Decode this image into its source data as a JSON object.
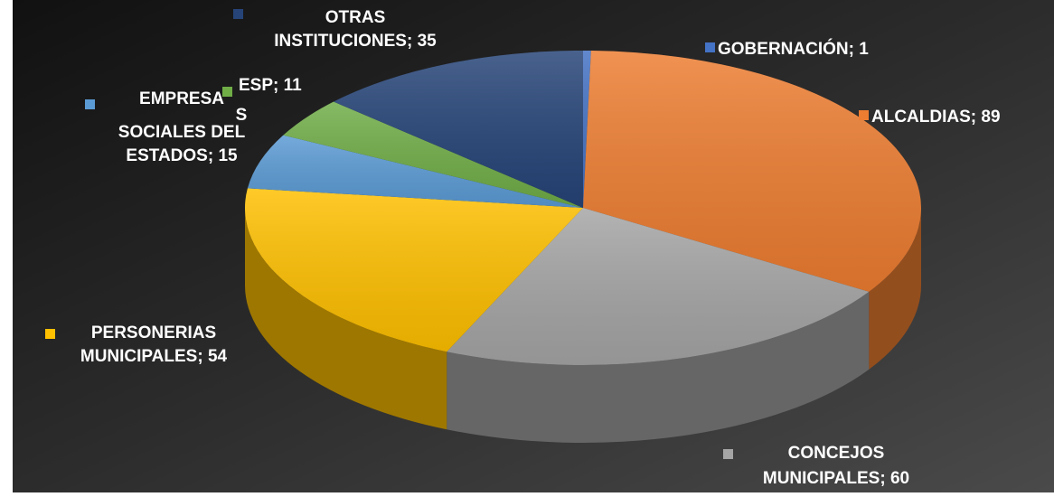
{
  "chart_data": {
    "type": "pie",
    "style": "3d",
    "background": "#000000",
    "slices": [
      {
        "label": "GOBERNACIÓN",
        "value": 1,
        "color": "#4472C4",
        "display": [
          "GOBERNACIÓN; 1"
        ]
      },
      {
        "label": "ALCALDIAS",
        "value": 89,
        "color": "#ED7D31",
        "display": [
          "ALCALDIAS; 89"
        ]
      },
      {
        "label": "CONCEJOS MUNICIPALES",
        "value": 60,
        "color": "#A5A5A5",
        "display": [
          "CONCEJOS",
          "MUNICIPALES; 60"
        ]
      },
      {
        "label": "PERSONERIAS MUNICIPALES",
        "value": 54,
        "color": "#FFC000",
        "display": [
          "PERSONERIAS",
          "MUNICIPALES; 54"
        ]
      },
      {
        "label": "EMPRESAS SOCIALES DEL ESTADOS",
        "value": 15,
        "color": "#5B9BD5",
        "display": [
          "EMPRESA",
          "S",
          "SOCIALES DEL",
          "ESTADOS; 15"
        ]
      },
      {
        "label": "ESP",
        "value": 11,
        "color": "#70AD47",
        "display": [
          "ESP; 11"
        ]
      },
      {
        "label": "OTRAS INSTITUCIONES",
        "value": 35,
        "color": "#264478",
        "display": [
          "OTRAS",
          "INSTITUCIONES; 35"
        ]
      }
    ]
  }
}
